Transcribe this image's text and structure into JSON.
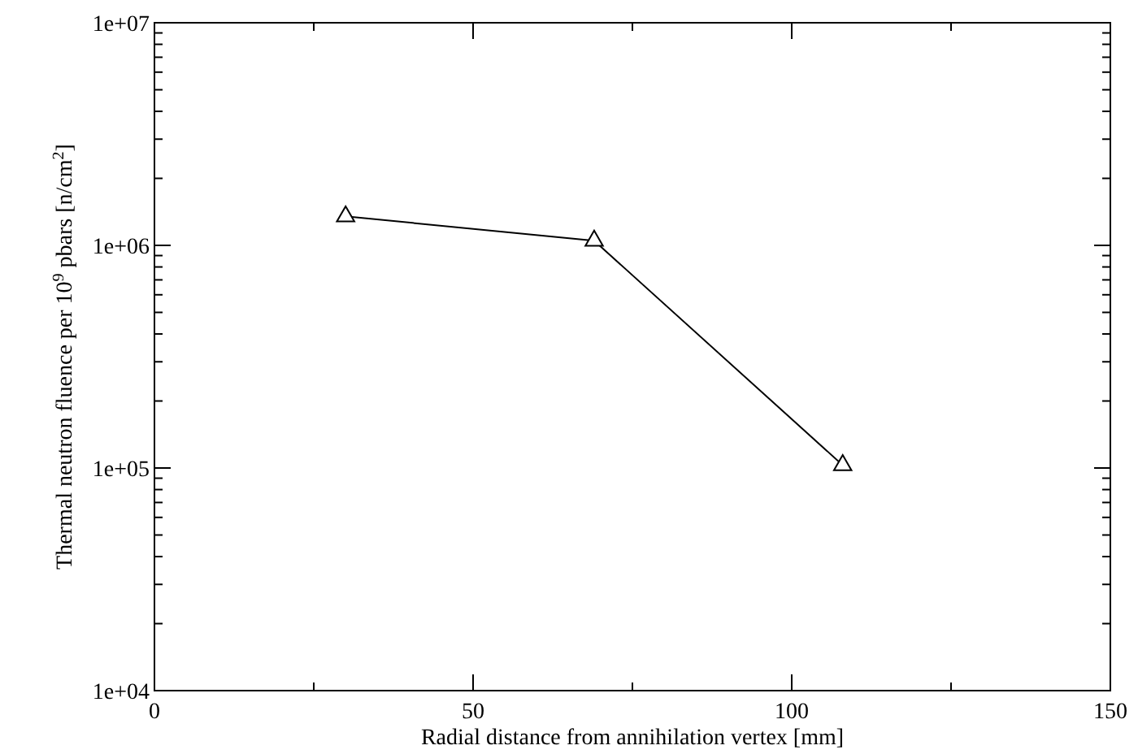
{
  "chart_data": {
    "type": "line",
    "xlabel": "Radial distance from annihilation vertex [mm]",
    "ylabel": "Thermal neutron fluence per 10$^{9}$ pbars [n/cm$^{2}$]",
    "x": [
      30,
      69,
      108
    ],
    "series": [
      {
        "color": "#000000",
        "values": [
          1350000,
          1050000,
          103000
        ]
      }
    ],
    "marker": "triangle",
    "line_style": "solid",
    "log": "y",
    "grid": false,
    "xlim": [
      0,
      150
    ],
    "xticks": [
      0,
      {
        "value": 25,
        "label": null
      },
      50,
      {
        "value": 75,
        "label": null
      },
      100,
      {
        "value": 125,
        "label": null
      },
      150
    ],
    "ylim": [
      10000,
      10000000
    ],
    "yticks": [
      {
        "value": 10000,
        "label": "1e+04"
      },
      {
        "value": 20000,
        "label": null
      },
      {
        "value": 30000,
        "label": null
      },
      {
        "value": 40000,
        "label": null
      },
      {
        "value": 50000,
        "label": null
      },
      {
        "value": 60000,
        "label": null
      },
      {
        "value": 70000,
        "label": null
      },
      {
        "value": 80000,
        "label": null
      },
      {
        "value": 90000,
        "label": null
      },
      {
        "value": 100000,
        "label": "1e+05"
      },
      {
        "value": 200000,
        "label": null
      },
      {
        "value": 300000,
        "label": null
      },
      {
        "value": 400000,
        "label": null
      },
      {
        "value": 500000,
        "label": null
      },
      {
        "value": 600000,
        "label": null
      },
      {
        "value": 700000,
        "label": null
      },
      {
        "value": 800000,
        "label": null
      },
      {
        "value": 900000,
        "label": null
      },
      {
        "value": 1000000,
        "label": "1e+06"
      },
      {
        "value": 2000000,
        "label": null
      },
      {
        "value": 3000000,
        "label": null
      },
      {
        "value": 4000000,
        "label": null
      },
      {
        "value": 5000000,
        "label": null
      },
      {
        "value": 6000000,
        "label": null
      },
      {
        "value": 7000000,
        "label": null
      },
      {
        "value": 8000000,
        "label": null
      },
      {
        "value": 9000000,
        "label": null
      },
      {
        "value": 10000000,
        "label": "1e+07"
      }
    ]
  }
}
